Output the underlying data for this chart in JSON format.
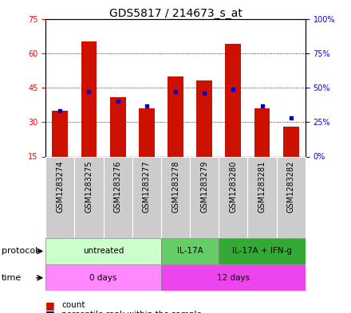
{
  "title": "GDS5817 / 214673_s_at",
  "samples": [
    "GSM1283274",
    "GSM1283275",
    "GSM1283276",
    "GSM1283277",
    "GSM1283278",
    "GSM1283279",
    "GSM1283280",
    "GSM1283281",
    "GSM1283282"
  ],
  "counts": [
    35,
    65,
    41,
    36,
    50,
    48,
    64,
    36,
    28
  ],
  "pct_right_axis": [
    33,
    47,
    40,
    37,
    47,
    46,
    49,
    37,
    28
  ],
  "ylim_left": [
    15,
    75
  ],
  "ylim_right": [
    0,
    100
  ],
  "yticks_left": [
    15,
    30,
    45,
    60,
    75
  ],
  "yticks_right": [
    0,
    25,
    50,
    75,
    100
  ],
  "ytick_right_labels": [
    "0%",
    "25%",
    "50%",
    "75%",
    "100%"
  ],
  "bar_color": "#cc1100",
  "dot_color": "#0000cc",
  "protocol_groups": [
    {
      "label": "untreated",
      "start": 0,
      "end": 4,
      "color": "#ccffcc"
    },
    {
      "label": "IL-17A",
      "start": 4,
      "end": 6,
      "color": "#66cc66"
    },
    {
      "label": "IL-17A + IFN-g",
      "start": 6,
      "end": 9,
      "color": "#33aa33"
    }
  ],
  "time_groups": [
    {
      "label": "0 days",
      "start": 0,
      "end": 4,
      "color": "#ff88ff"
    },
    {
      "label": "12 days",
      "start": 4,
      "end": 9,
      "color": "#ee44ee"
    }
  ],
  "sample_box_color": "#cccccc",
  "legend_count_color": "#cc1100",
  "legend_pct_color": "#0000cc",
  "grid_color": "#000000",
  "title_fontsize": 10,
  "tick_fontsize": 7,
  "label_fontsize": 7.5,
  "row_label_fontsize": 8
}
